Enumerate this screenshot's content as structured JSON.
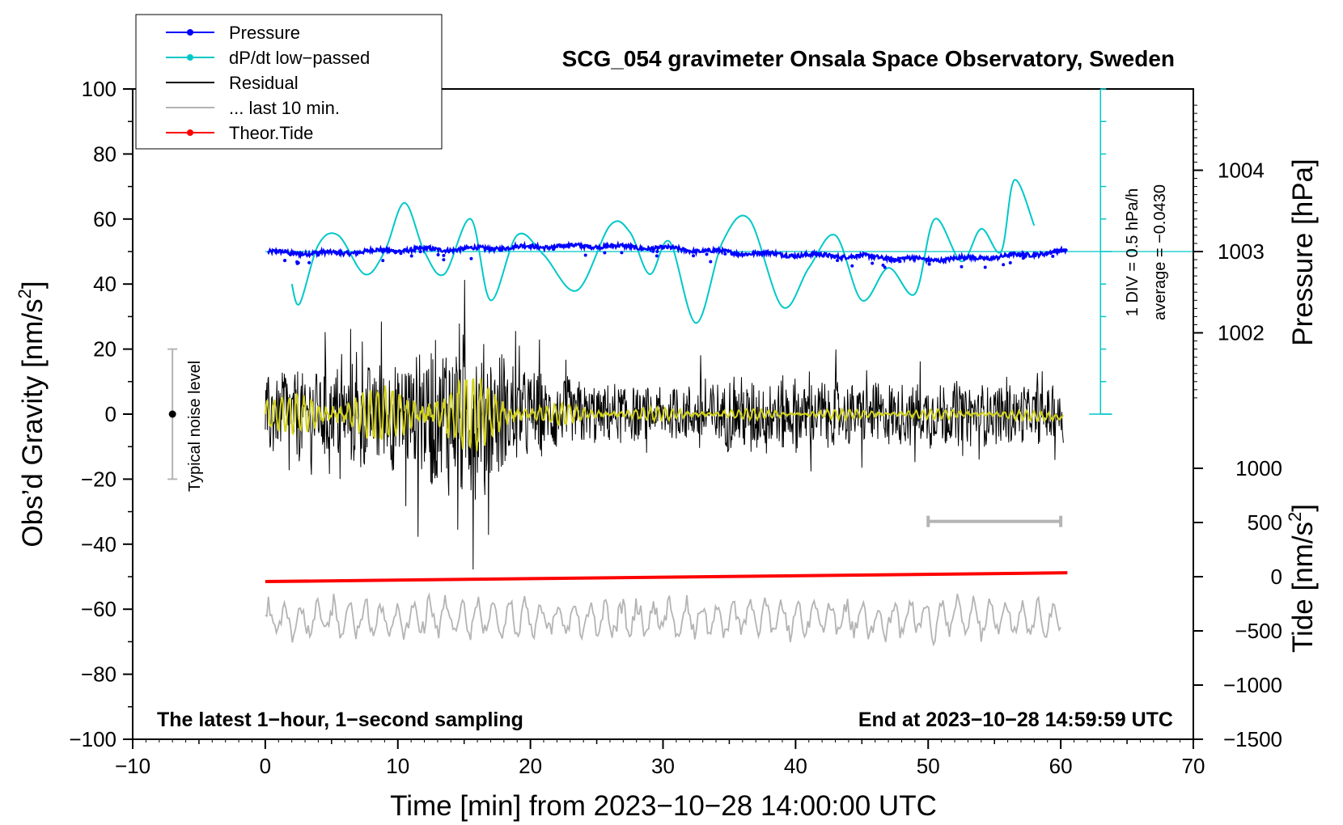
{
  "chart_data": {
    "type": "line",
    "title": "SCG_054 gravimeter Onsala Space Observatory, Sweden",
    "xlabel": "Time [min] from 2023−10−28 14:00:00 UTC",
    "ylabel_left": "Obs’d Gravity [nm/s",
    "ylabel_left_sup": "2",
    "ylabel_left_close": "]",
    "ylabel_right_top": "Pressure [hPa]",
    "ylabel_right_bottom": "Tide [nm/s",
    "ylabel_right_bottom_sup": "2",
    "ylabel_right_bottom_close": "]",
    "xlim": [
      -10,
      70
    ],
    "ylim": [
      -100,
      100
    ],
    "x_ticks": [
      "−10",
      "0",
      "10",
      "20",
      "30",
      "40",
      "50",
      "60",
      "70"
    ],
    "y_ticks": [
      "−100",
      "−80",
      "−60",
      "−40",
      "−20",
      "0",
      "20",
      "40",
      "60",
      "80",
      "100"
    ],
    "pressure_axis": {
      "ticks": [
        "1002",
        "1003",
        "1004"
      ],
      "tick_values": [
        1002,
        1003,
        1004
      ],
      "ref_value": 1003
    },
    "tide_axis": {
      "ticks": [
        "−1500",
        "−1000",
        "−500",
        "0",
        "500",
        "1000"
      ],
      "tick_values": [
        -1500,
        -1000,
        -500,
        0,
        500,
        1000
      ]
    },
    "legend": [
      {
        "label": "Pressure",
        "color": "#0000ff",
        "marker": true
      },
      {
        "label": "dP/dt low−passed",
        "color": "#00c8c8",
        "marker": true
      },
      {
        "label": "Residual",
        "color": "#000000",
        "marker": false
      },
      {
        "label": "... last 10 min.",
        "color": "#b4b4b4",
        "marker": false
      },
      {
        "label": "Theor.Tide",
        "color": "#ff0000",
        "marker": true
      }
    ],
    "annotations": {
      "bottom_left": "The latest 1−hour, 1−second sampling",
      "bottom_right": "End at 2023−10−28 14:59:59 UTC",
      "noise_label": "Typical noise level",
      "div_note": "1 DIV = 0.5 hPa/h",
      "avg_note": "average = −0.0430"
    },
    "noise_bar": {
      "x": -7,
      "y_center": 0,
      "y_low": -20,
      "y_high": 20
    },
    "scale_bar_10min": {
      "x_start": 50,
      "x_end": 60,
      "y": -33
    },
    "series": [
      {
        "name": "Pressure",
        "color": "#0000ff",
        "unit": "hPa",
        "x": [
          0,
          5,
          10,
          15,
          20,
          25,
          30,
          35,
          40,
          45,
          50,
          55,
          60
        ],
        "values": [
          1002.99,
          1002.98,
          1003.02,
          1003.03,
          1003.06,
          1003.07,
          1003.04,
          1002.99,
          1002.96,
          1002.94,
          1002.9,
          1002.93,
          1003.0
        ]
      },
      {
        "name": "dP/dt low−passed",
        "color": "#00c8c8",
        "unit": "nm/s2 plot scale",
        "x": [
          2,
          2.6,
          4,
          5.5,
          7.5,
          9,
          10.5,
          12,
          13.5,
          15.5,
          17,
          19,
          21,
          23.5,
          26,
          27.5,
          29,
          30.5,
          32.5,
          34.5,
          36.5,
          39,
          41,
          43,
          45,
          47,
          49,
          50.5,
          52.5,
          54,
          55.5,
          56.5,
          58
        ],
        "values": [
          40,
          34,
          52,
          55,
          43,
          50,
          65,
          50,
          43,
          60,
          35,
          55,
          49,
          38,
          58,
          56,
          43,
          53,
          28,
          53,
          60,
          33,
          45,
          55,
          35,
          45,
          37,
          60,
          47,
          57,
          50,
          72,
          58
        ]
      },
      {
        "name": "Residual",
        "color": "#000000",
        "unit": "nm/s2",
        "x": [
          0,
          5,
          10,
          15,
          20,
          25,
          30,
          35,
          40,
          45,
          50,
          55,
          60
        ],
        "values": [
          0,
          0,
          0,
          0,
          0,
          0,
          0,
          0,
          0,
          0,
          0,
          0,
          0
        ],
        "envelope": [
          14,
          16,
          18,
          30,
          14,
          10,
          8,
          12,
          12,
          10,
          11,
          10,
          9
        ]
      },
      {
        "name": "Residual smoothed",
        "color": "#d2d21e",
        "unit": "nm/s2",
        "x": [
          0,
          5,
          10,
          15,
          20,
          25,
          30,
          35,
          40,
          45,
          50,
          55,
          60
        ],
        "values": [
          0,
          0,
          0,
          0,
          0,
          0,
          0,
          0,
          0,
          0,
          0,
          0,
          -1
        ],
        "envelope": [
          5,
          7,
          8,
          12,
          4,
          2,
          2,
          1.5,
          1.5,
          1.5,
          1.5,
          1.5,
          1.5
        ]
      },
      {
        "name": "Theor.Tide",
        "color": "#ff0000",
        "unit": "nm/s2 plot scale",
        "x": [
          0,
          60.5
        ],
        "values": [
          -51.5,
          -48.8
        ]
      },
      {
        "name": "... last 10 min.",
        "color": "#b4b4b4",
        "unit": "nm/s2 plot scale",
        "x": [
          0,
          60
        ],
        "values": [
          -63,
          -63
        ],
        "envelope": [
          6,
          6
        ]
      }
    ]
  }
}
